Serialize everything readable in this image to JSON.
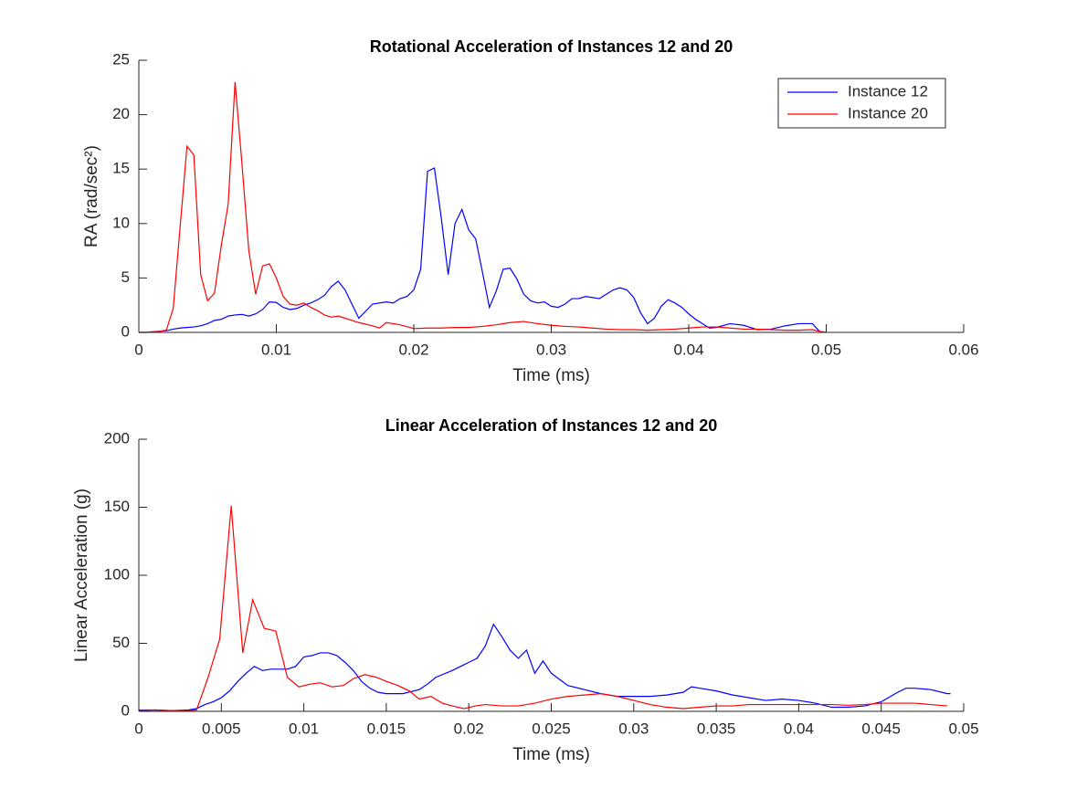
{
  "chart_data": [
    {
      "type": "line",
      "title": "Rotational Acceleration of Instances 12 and 20",
      "xlabel": "Time (ms)",
      "ylabel": "RA (rad/sec²)",
      "xlim": [
        0,
        0.06
      ],
      "xticks": [
        0,
        0.01,
        0.02,
        0.03,
        0.04,
        0.05,
        0.06
      ],
      "ylim": [
        0,
        25
      ],
      "yticks": [
        0,
        5,
        10,
        15,
        20,
        25
      ],
      "legend": "northeast",
      "series": [
        {
          "name": "Instance 12",
          "color": "#0000ff",
          "x": [
            0,
            0.0005,
            0.001,
            0.0015,
            0.002,
            0.0025,
            0.003,
            0.0035,
            0.004,
            0.0045,
            0.005,
            0.0055,
            0.006,
            0.0065,
            0.007,
            0.0075,
            0.008,
            0.0085,
            0.009,
            0.0095,
            0.01,
            0.0105,
            0.011,
            0.0115,
            0.012,
            0.0125,
            0.013,
            0.0135,
            0.014,
            0.0145,
            0.015,
            0.016,
            0.017,
            0.018,
            0.0185,
            0.019,
            0.0195,
            0.02,
            0.0205,
            0.021,
            0.0215,
            0.022,
            0.0225,
            0.023,
            0.0235,
            0.024,
            0.0245,
            0.025,
            0.0255,
            0.026,
            0.0265,
            0.027,
            0.0275,
            0.028,
            0.0285,
            0.029,
            0.0295,
            0.03,
            0.0305,
            0.031,
            0.0315,
            0.032,
            0.0325,
            0.033,
            0.0335,
            0.034,
            0.0345,
            0.035,
            0.0355,
            0.036,
            0.0365,
            0.037,
            0.0375,
            0.038,
            0.0385,
            0.039,
            0.0395,
            0.04,
            0.0405,
            0.041,
            0.0415,
            0.042,
            0.043,
            0.044,
            0.045,
            0.046,
            0.047,
            0.048,
            0.049,
            0.0495
          ],
          "values": [
            0,
            0,
            0.05,
            0.1,
            0.15,
            0.3,
            0.4,
            0.45,
            0.5,
            0.6,
            0.8,
            1.1,
            1.2,
            1.5,
            1.6,
            1.65,
            1.5,
            1.7,
            2.1,
            2.8,
            2.75,
            2.3,
            2.1,
            2.2,
            2.5,
            2.7,
            3,
            3.4,
            4.2,
            4.7,
            3.9,
            1.3,
            2.6,
            2.8,
            2.7,
            3.1,
            3.3,
            3.9,
            5.8,
            14.8,
            15.1,
            10.5,
            5.3,
            10,
            11.3,
            9.4,
            8.6,
            5.5,
            2.3,
            3.8,
            5.8,
            5.9,
            4.9,
            3.5,
            2.9,
            2.7,
            2.8,
            2.4,
            2.3,
            2.6,
            3.1,
            3.1,
            3.3,
            3.2,
            3.1,
            3.5,
            3.9,
            4.1,
            3.9,
            3.2,
            1.8,
            0.8,
            1.3,
            2.4,
            3,
            2.7,
            2.3,
            1.7,
            1.2,
            0.8,
            0.4,
            0.45,
            0.8,
            0.65,
            0.25,
            0.3,
            0.6,
            0.8,
            0.8,
            0.1
          ]
        },
        {
          "name": "Instance 20",
          "color": "#ff0000",
          "x": [
            0,
            0.0005,
            0.001,
            0.0015,
            0.002,
            0.0025,
            0.0035,
            0.004,
            0.0045,
            0.005,
            0.0055,
            0.006,
            0.0065,
            0.007,
            0.0075,
            0.008,
            0.0085,
            0.009,
            0.0095,
            0.01,
            0.0105,
            0.011,
            0.0115,
            0.012,
            0.0125,
            0.013,
            0.0135,
            0.014,
            0.0145,
            0.015,
            0.016,
            0.017,
            0.0175,
            0.018,
            0.019,
            0.02,
            0.021,
            0.022,
            0.023,
            0.024,
            0.025,
            0.026,
            0.027,
            0.028,
            0.029,
            0.03,
            0.031,
            0.032,
            0.033,
            0.034,
            0.035,
            0.036,
            0.037,
            0.038,
            0.039,
            0.04,
            0.041,
            0.042,
            0.043,
            0.044,
            0.045,
            0.046,
            0.047,
            0.048,
            0.049,
            0.0495,
            0.05
          ],
          "values": [
            0,
            0,
            0.05,
            0.1,
            0.2,
            2.2,
            17.1,
            16.3,
            5.3,
            2.9,
            3.6,
            8,
            11.8,
            23,
            15.5,
            7.5,
            3.5,
            6.1,
            6.3,
            5,
            3.3,
            2.6,
            2.5,
            2.7,
            2.3,
            2,
            1.6,
            1.4,
            1.5,
            1.3,
            0.9,
            0.6,
            0.4,
            0.9,
            0.7,
            0.35,
            0.4,
            0.4,
            0.45,
            0.45,
            0.55,
            0.7,
            0.9,
            1,
            0.8,
            0.65,
            0.55,
            0.5,
            0.4,
            0.3,
            0.25,
            0.25,
            0.2,
            0.25,
            0.3,
            0.4,
            0.5,
            0.5,
            0.4,
            0.3,
            0.3,
            0.25,
            0.2,
            0.2,
            0.25,
            0.1,
            0
          ]
        }
      ]
    },
    {
      "type": "line",
      "title": "Linear Acceleration of Instances 12 and 20",
      "xlabel": "Time (ms)",
      "ylabel": "Linear Acceleration (g)",
      "xlim": [
        0,
        0.05
      ],
      "xticks": [
        0,
        0.005,
        0.01,
        0.015,
        0.02,
        0.025,
        0.03,
        0.035,
        0.04,
        0.045,
        0.05
      ],
      "ylim": [
        0,
        200
      ],
      "yticks": [
        0,
        50,
        100,
        150,
        200
      ],
      "series": [
        {
          "color": "#0000ff",
          "x": [
            0,
            0.001,
            0.002,
            0.003,
            0.0035,
            0.004,
            0.0045,
            0.005,
            0.0055,
            0.006,
            0.0065,
            0.007,
            0.0075,
            0.008,
            0.0085,
            0.009,
            0.0095,
            0.01,
            0.0105,
            0.011,
            0.0115,
            0.012,
            0.0125,
            0.013,
            0.0135,
            0.014,
            0.0145,
            0.015,
            0.016,
            0.017,
            0.0175,
            0.018,
            0.019,
            0.02,
            0.0205,
            0.021,
            0.0215,
            0.022,
            0.0225,
            0.023,
            0.0235,
            0.024,
            0.0245,
            0.025,
            0.026,
            0.027,
            0.028,
            0.029,
            0.03,
            0.031,
            0.032,
            0.033,
            0.0335,
            0.034,
            0.035,
            0.036,
            0.037,
            0.038,
            0.039,
            0.04,
            0.041,
            0.042,
            0.043,
            0.044,
            0.045,
            0.046,
            0.0465,
            0.047,
            0.048,
            0.049,
            0.0492
          ],
          "values": [
            0.5,
            1,
            0.5,
            1,
            2,
            5,
            7,
            10,
            15,
            22,
            28,
            33,
            30,
            31,
            31,
            31,
            33,
            40,
            41,
            43,
            43,
            41,
            36,
            30,
            22,
            17,
            14,
            13,
            13,
            16,
            20,
            25,
            30,
            36,
            39,
            48,
            64,
            55,
            45,
            39,
            45,
            28,
            37,
            28,
            19,
            16,
            13,
            11,
            11,
            11,
            12,
            14,
            18,
            17,
            15,
            12,
            10,
            8,
            9,
            8,
            6,
            3,
            3,
            4,
            7,
            14,
            17,
            17,
            16,
            13,
            13
          ]
        },
        {
          "color": "#ff0000",
          "x": [
            0,
            0.001,
            0.002,
            0.003,
            0.0035,
            0.0042,
            0.0049,
            0.0056,
            0.0063,
            0.0069,
            0.0076,
            0.0083,
            0.009,
            0.0097,
            0.0104,
            0.011,
            0.0117,
            0.0124,
            0.013,
            0.0137,
            0.0144,
            0.015,
            0.0157,
            0.0164,
            0.017,
            0.0177,
            0.0184,
            0.019,
            0.0197,
            0.0204,
            0.021,
            0.022,
            0.023,
            0.024,
            0.025,
            0.026,
            0.027,
            0.028,
            0.029,
            0.03,
            0.031,
            0.032,
            0.033,
            0.034,
            0.035,
            0.036,
            0.037,
            0.038,
            0.039,
            0.04,
            0.041,
            0.042,
            0.043,
            0.044,
            0.045,
            0.046,
            0.047,
            0.048,
            0.049
          ],
          "values": [
            1,
            1,
            0.5,
            0.5,
            1,
            25,
            53,
            151,
            43,
            82,
            61,
            59,
            25,
            18,
            20,
            21,
            18,
            19,
            24,
            27,
            25,
            22,
            19,
            15,
            9,
            11,
            6,
            4,
            2,
            4,
            5,
            4,
            4,
            6,
            9,
            11,
            12,
            13,
            11,
            8,
            5,
            3,
            2,
            3,
            4,
            4,
            5,
            5,
            5,
            5,
            5,
            5,
            4.5,
            5,
            6,
            6,
            6,
            5,
            4
          ]
        }
      ]
    }
  ]
}
